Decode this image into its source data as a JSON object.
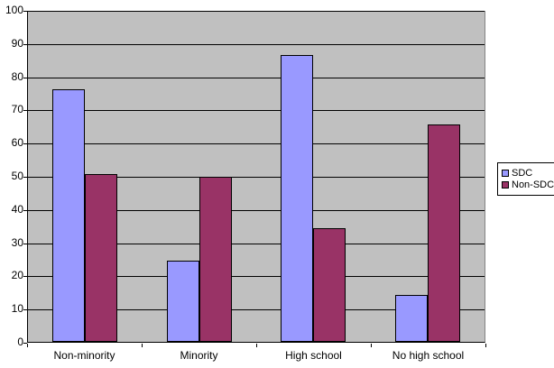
{
  "chart_data": {
    "type": "bar",
    "title": "",
    "categories": [
      "Non-minority",
      "Minority",
      "High school",
      "No high school"
    ],
    "series": [
      {
        "name": "SDC",
        "color": "#9999FF",
        "values": [
          76,
          24.5,
          86.5,
          14
        ]
      },
      {
        "name": "Non-SDC",
        "color": "#993366",
        "values": [
          50.5,
          49.7,
          34.3,
          65.5
        ]
      }
    ],
    "xlabel": "",
    "ylabel": "",
    "ylim": [
      0,
      100
    ],
    "yticks": [
      0,
      10,
      20,
      30,
      40,
      50,
      60,
      70,
      80,
      90,
      100
    ],
    "grid": "horizontal",
    "legend_position": "right",
    "colors": {
      "plot_background": "#C0C0C0",
      "chart_background": "#FFFFFF",
      "gridline": "#000000",
      "bar_border": "#000000",
      "legend_background": "#FFFFFF",
      "legend_border": "#000000",
      "text": "#000000"
    }
  }
}
